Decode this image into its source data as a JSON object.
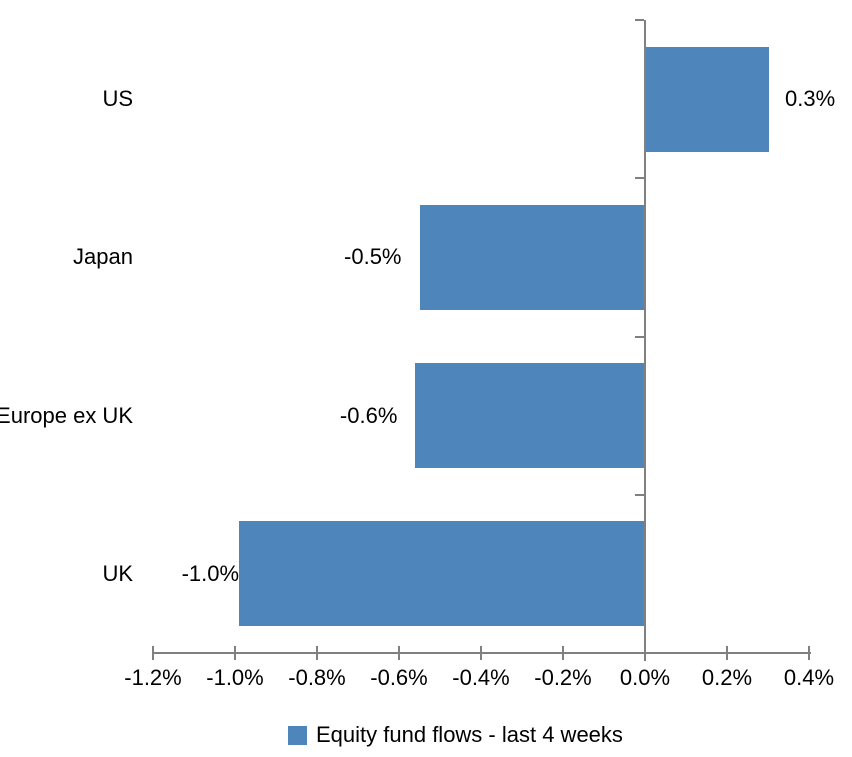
{
  "chart_data": {
    "type": "bar",
    "orientation": "horizontal",
    "title": "",
    "categories": [
      "US",
      "Japan",
      "Europe ex UK",
      "UK"
    ],
    "series": [
      {
        "name": "Equity fund flows - last 4 weeks",
        "values": [
          0.3,
          -0.55,
          -0.56,
          -0.99
        ],
        "labels": [
          "0.3%",
          "-0.5%",
          "-0.6%",
          "-1.0%"
        ]
      }
    ],
    "xlabel": "",
    "ylabel": "",
    "xlim": [
      -1.2,
      0.4
    ],
    "x_ticks": [
      -1.2,
      -1.0,
      -0.8,
      -0.6,
      -0.4,
      -0.2,
      0.0,
      0.2,
      0.4
    ],
    "x_tick_labels": [
      "-1.2%",
      "-1.0%",
      "-0.8%",
      "-0.6%",
      "-0.4%",
      "-0.2%",
      "0.0%",
      "0.2%",
      "0.4%"
    ],
    "grid": false,
    "legend": {
      "position": "bottom",
      "entries": [
        "Equity fund flows - last 4 weeks"
      ]
    }
  },
  "colors": {
    "bar_blue": "#4E86BC",
    "axis_gray": "#808080",
    "text_black": "#000000",
    "background": "#FFFFFF"
  }
}
